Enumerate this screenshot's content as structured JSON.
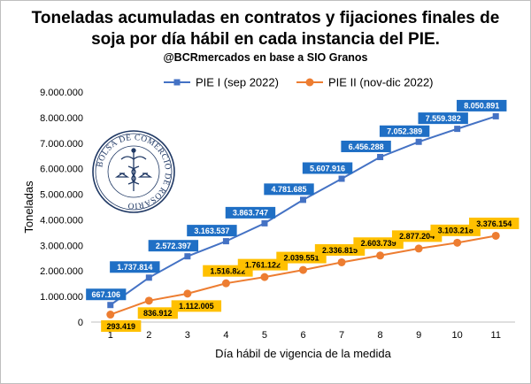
{
  "chart_data": {
    "type": "line",
    "title": "Toneladas acumuladas en contratos y fijaciones finales de soja por día hábil en cada instancia del PIE.",
    "title_lines": [
      "Toneladas acumuladas en contratos y fijaciones finales de",
      "soja por día hábil en cada instancia del PIE."
    ],
    "subtitle": "@BCRmercados en base a SIO Granos",
    "xlabel": "Día hábil de vigencia de la medida",
    "ylabel": "Toneladas",
    "x": [
      1,
      2,
      3,
      4,
      5,
      6,
      7,
      8,
      9,
      10,
      11
    ],
    "x_tick_labels": [
      "1",
      "2",
      "3",
      "4",
      "5",
      "6",
      "7",
      "8",
      "9",
      "10",
      "11"
    ],
    "ylim": [
      0,
      9000000
    ],
    "y_ticks": [
      0,
      1000000,
      2000000,
      3000000,
      4000000,
      5000000,
      6000000,
      7000000,
      8000000,
      9000000
    ],
    "y_tick_labels": [
      "0",
      "1.000.000",
      "2.000.000",
      "3.000.000",
      "4.000.000",
      "5.000.000",
      "6.000.000",
      "7.000.000",
      "8.000.000",
      "9.000.000"
    ],
    "grid": false,
    "legend_position": "top",
    "series": [
      {
        "name": "PIE I (sep 2022)",
        "color": "#4472c4",
        "label_bg": "#1f6fc5",
        "label_fg": "#ffffff",
        "marker": "square",
        "values": [
          667106,
          1737814,
          2572397,
          3163537,
          3863747,
          4781685,
          5607916,
          6456288,
          7052389,
          7559382,
          8050891
        ],
        "labels": [
          "667.106",
          "1.737.814",
          "2.572.397",
          "3.163.537",
          "3.863.747",
          "4.781.685",
          "5.607.916",
          "6.456.288",
          "7.052.389",
          "7.559.382",
          "8.050.891"
        ]
      },
      {
        "name": "PIE II (nov-dic 2022)",
        "color": "#ed7d31",
        "label_bg": "#ffc000",
        "label_fg": "#000000",
        "marker": "circle",
        "values": [
          293419,
          836912,
          1112005,
          1516822,
          1761122,
          2039551,
          2336815,
          2603739,
          2877204,
          3103218,
          3376154
        ],
        "labels": [
          "293.419",
          "836.912",
          "1.112.005",
          "1.516.822",
          "1.761.122",
          "2.039.551",
          "2.336.815",
          "2.603.739",
          "2.877.204",
          "3.103.218",
          "3.376.154"
        ]
      }
    ]
  },
  "logo": {
    "text": "BOLSA DE COMERCIO DE ROSARIO"
  }
}
